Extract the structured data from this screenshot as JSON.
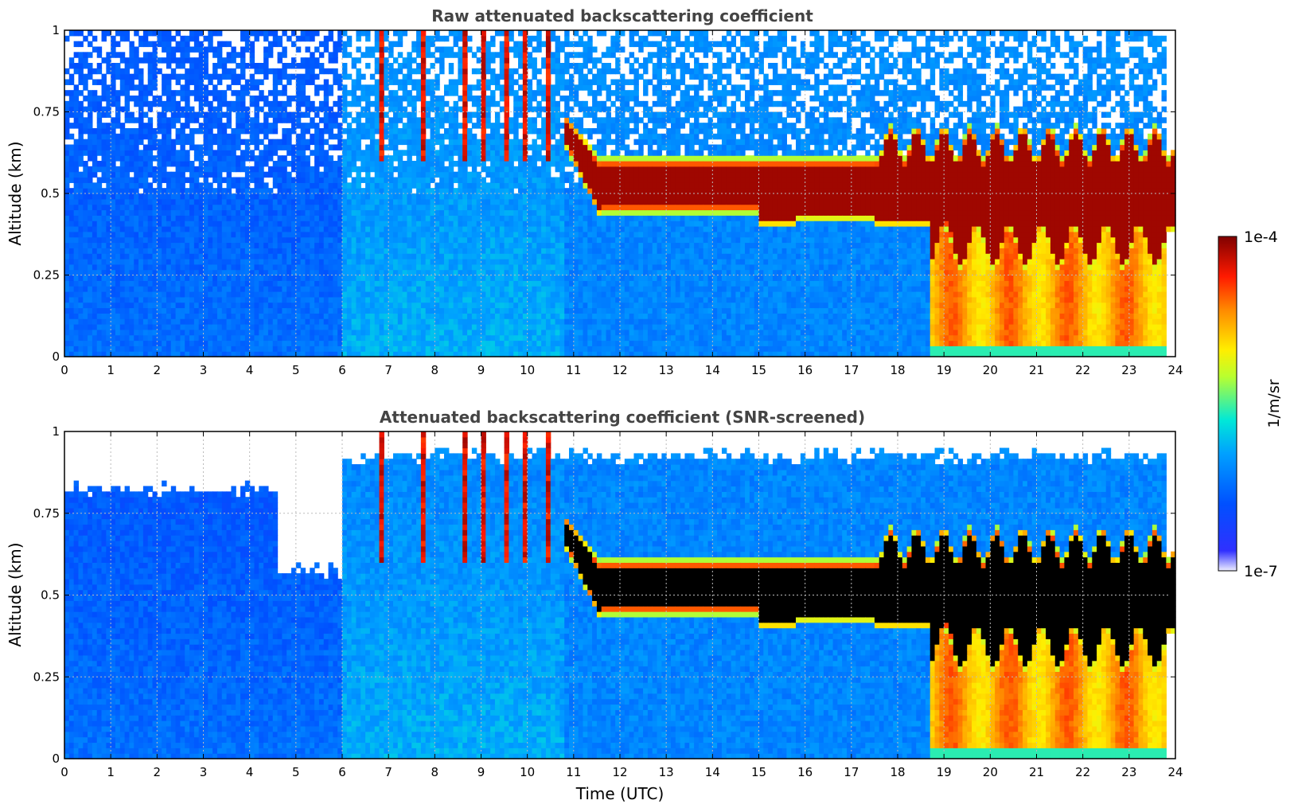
{
  "chart_data": [
    {
      "type": "heatmap",
      "title": "Raw attenuated backscattering coefficient",
      "xlabel": "",
      "ylabel": "Altitude (km)",
      "xlim": [
        0,
        24
      ],
      "ylim": [
        0,
        1
      ],
      "x_ticks": [
        "0",
        "1",
        "2",
        "3",
        "4",
        "5",
        "6",
        "7",
        "8",
        "9",
        "10",
        "11",
        "12",
        "13",
        "14",
        "15",
        "16",
        "17",
        "18",
        "19",
        "20",
        "21",
        "22",
        "23",
        "24"
      ],
      "y_ticks": [
        "0",
        "0.25",
        "0.5",
        "0.75",
        "1"
      ],
      "grid": true,
      "screened": false,
      "regions": [
        {
          "x": [
            0,
            6.0
          ],
          "y": [
            0,
            1
          ],
          "level": "low (1e-7 to 1e-6), blue, noisy above 0.5 km"
        },
        {
          "x": [
            6.0,
            10.8
          ],
          "y": [
            0,
            1
          ],
          "level": "light blue, intermittent plumes up to 1 km near 7-10.5 h"
        },
        {
          "x": [
            10.8,
            18.7
          ],
          "y": [
            0.4,
            0.6
          ],
          "level": "high (~1e-4), dark red cloud/aerosol layer"
        },
        {
          "x": [
            18.7,
            23.8
          ],
          "y": [
            0.03,
            0.4
          ],
          "level": "orange-yellow (~1e-5)"
        },
        {
          "x": [
            18.7,
            23.8
          ],
          "y": [
            0.4,
            0.65
          ],
          "level": "high (~1e-4), dark red layer"
        }
      ]
    },
    {
      "type": "heatmap",
      "title": "Attenuated backscattering coefficient (SNR-screened)",
      "xlabel": "Time (UTC)",
      "ylabel": "Altitude (km)",
      "xlim": [
        0,
        24
      ],
      "ylim": [
        0,
        1
      ],
      "x_ticks": [
        "0",
        "1",
        "2",
        "3",
        "4",
        "5",
        "6",
        "7",
        "8",
        "9",
        "10",
        "11",
        "12",
        "13",
        "14",
        "15",
        "16",
        "17",
        "18",
        "19",
        "20",
        "21",
        "22",
        "23",
        "24"
      ],
      "y_ticks": [
        "0",
        "0.25",
        "0.5",
        "0.75",
        "1"
      ],
      "grid": true,
      "screened": true,
      "regions": [
        {
          "x": [
            0,
            6.0
          ],
          "y": [
            0,
            0.8
          ],
          "level": "low (blue), screened above ~0.8 km"
        },
        {
          "x": [
            10.8,
            18.7
          ],
          "y": [
            0.42,
            0.58
          ],
          "level": "saturated layer shown black"
        },
        {
          "x": [
            18.7,
            23.8
          ],
          "y": [
            0.03,
            0.4
          ],
          "level": "orange-yellow (~1e-5)"
        }
      ]
    }
  ],
  "colorbar": {
    "max_label": "1e-4",
    "min_label": "1e-7",
    "unit_label": "1/m/sr",
    "colors": [
      "#eeeeff",
      "#0000ff",
      "#00ddff",
      "#ffee00",
      "#ff3300",
      "#7f0000"
    ]
  }
}
